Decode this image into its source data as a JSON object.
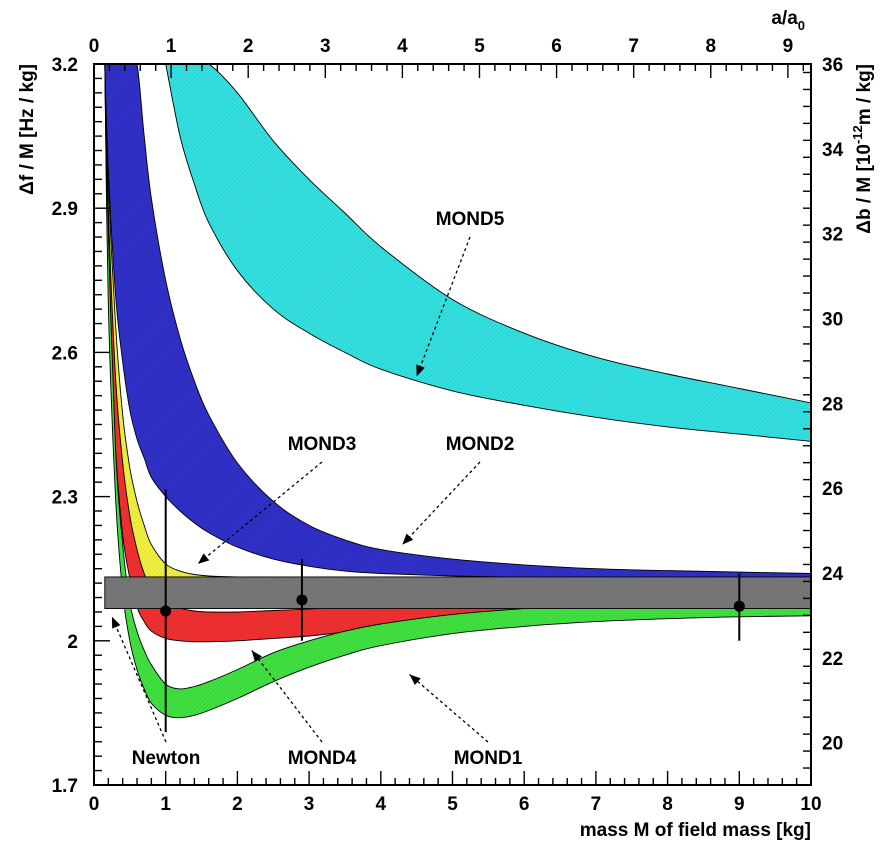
{
  "chart_data": {
    "type": "area",
    "title": "",
    "xlabel": "mass M of field mass [kg]",
    "ylabel": "Δf / M  [Hz / kg]",
    "y2label_main": "Δb / M  [10",
    "y2label_exp": "-12",
    "y2label_tail": "m / kg]",
    "top_axis_label": "a/a",
    "top_axis_label_sub": "0",
    "xlim": [
      0,
      10
    ],
    "ylim": [
      1.7,
      3.2
    ],
    "y2lim": [
      19.0,
      36.0
    ],
    "top_xlim": [
      0,
      9.3
    ],
    "x_ticks": [
      "0",
      "1",
      "2",
      "3",
      "4",
      "5",
      "6",
      "7",
      "8",
      "9",
      "10"
    ],
    "y_ticks": [
      "1.7",
      "2",
      "2.3",
      "2.6",
      "2.9",
      "3.2"
    ],
    "y2_ticks": [
      "20",
      "22",
      "24",
      "26",
      "28",
      "30",
      "32",
      "34",
      "36"
    ],
    "top_ticks": [
      "0",
      "1",
      "2",
      "3",
      "4",
      "5",
      "6",
      "7",
      "8",
      "9"
    ],
    "grid": false,
    "legend": "none",
    "x": [
      0.15,
      0.2,
      0.3,
      0.4,
      0.5,
      0.6,
      0.7,
      0.8,
      1.0,
      1.2,
      1.4,
      1.6,
      2.0,
      2.5,
      3.0,
      3.5,
      4.0,
      5.0,
      6.0,
      7.0,
      8.0,
      9.0,
      10.0
    ],
    "series": [
      {
        "label": "MOND5",
        "color": "#33e0e0",
        "lower": [
          null,
          null,
          null,
          null,
          null,
          null,
          null,
          null,
          3.2,
          3.05,
          2.95,
          2.87,
          2.77,
          2.69,
          2.64,
          2.6,
          2.565,
          2.52,
          2.49,
          2.465,
          2.445,
          2.43,
          2.415
        ],
        "upper": [
          null,
          null,
          null,
          null,
          null,
          null,
          null,
          null,
          3.2,
          3.2,
          3.2,
          3.2,
          3.14,
          3.04,
          2.96,
          2.89,
          2.82,
          2.71,
          2.64,
          2.59,
          2.555,
          2.525,
          2.495
        ]
      },
      {
        "label": "MOND2",
        "color": "#3030c8",
        "lower": [
          3.2,
          2.98,
          2.72,
          2.58,
          2.48,
          2.42,
          2.38,
          2.34,
          2.3,
          2.27,
          2.245,
          2.225,
          2.195,
          2.17,
          2.155,
          2.145,
          2.14,
          2.135,
          2.132,
          2.13,
          2.128,
          2.127,
          2.126
        ],
        "upper": [
          3.2,
          3.2,
          3.2,
          3.2,
          3.2,
          3.2,
          3.05,
          2.92,
          2.75,
          2.63,
          2.54,
          2.47,
          2.37,
          2.29,
          2.24,
          2.21,
          2.19,
          2.17,
          2.158,
          2.15,
          2.146,
          2.143,
          2.14
        ]
      },
      {
        "label": "MOND3",
        "color": "#f0f040",
        "lower": [
          3.2,
          2.8,
          2.5,
          2.33,
          2.22,
          2.16,
          2.12,
          2.1,
          2.085,
          2.078,
          2.075,
          2.073,
          2.072,
          2.072,
          2.072,
          2.073,
          2.074,
          2.08,
          2.085,
          2.09,
          2.095,
          2.1,
          2.105
        ],
        "upper": [
          3.2,
          2.95,
          2.66,
          2.47,
          2.36,
          2.29,
          2.24,
          2.2,
          2.16,
          2.145,
          2.138,
          2.135,
          2.133,
          2.132,
          2.132,
          2.131,
          2.13,
          2.128,
          2.126,
          2.124,
          2.122,
          2.12,
          2.118
        ]
      },
      {
        "label": "MOND4",
        "color": "#f03030",
        "lower": [
          3.2,
          2.75,
          2.4,
          2.22,
          2.13,
          2.07,
          2.04,
          2.02,
          2.005,
          2.0,
          1.998,
          1.998,
          2.0,
          2.005,
          2.01,
          2.018,
          2.025,
          2.038,
          2.045,
          2.05,
          2.052,
          2.053,
          2.053
        ],
        "upper": [
          3.2,
          2.9,
          2.55,
          2.37,
          2.26,
          2.19,
          2.14,
          2.11,
          2.08,
          2.068,
          2.062,
          2.06,
          2.06,
          2.063,
          2.066,
          2.07,
          2.075,
          2.082,
          2.088,
          2.092,
          2.094,
          2.095,
          2.095
        ]
      },
      {
        "label": "MOND1",
        "color": "#40e040",
        "lower": [
          3.2,
          2.7,
          2.3,
          2.1,
          2.0,
          1.94,
          1.9,
          1.87,
          1.845,
          1.84,
          1.845,
          1.855,
          1.88,
          1.915,
          1.945,
          1.97,
          1.99,
          2.015,
          2.03,
          2.04,
          2.046,
          2.05,
          2.052
        ],
        "upper": [
          3.2,
          2.85,
          2.4,
          2.2,
          2.08,
          2.02,
          1.98,
          1.95,
          1.91,
          1.9,
          1.905,
          1.915,
          1.94,
          1.975,
          2.0,
          2.02,
          2.035,
          2.055,
          2.067,
          2.075,
          2.08,
          2.085,
          2.088
        ]
      },
      {
        "label": "Newton",
        "color": "#777777",
        "lower": [
          2.067,
          2.067,
          2.067,
          2.067,
          2.067,
          2.067,
          2.067,
          2.067,
          2.067,
          2.067,
          2.067,
          2.067,
          2.067,
          2.067,
          2.067,
          2.067,
          2.067,
          2.067,
          2.067,
          2.067,
          2.067,
          2.067,
          2.067
        ],
        "upper": [
          2.133,
          2.133,
          2.133,
          2.133,
          2.133,
          2.133,
          2.133,
          2.133,
          2.133,
          2.133,
          2.133,
          2.133,
          2.133,
          2.133,
          2.133,
          2.133,
          2.133,
          2.133,
          2.133,
          2.133,
          2.133,
          2.133,
          2.133
        ]
      }
    ],
    "data_points": [
      {
        "x": 1.0,
        "y": 2.062,
        "yerr_low": 1.81,
        "yerr_high": 2.315
      },
      {
        "x": 2.9,
        "y": 2.085,
        "yerr_low": 2.0,
        "yerr_high": 2.17
      },
      {
        "x": 9.0,
        "y": 2.072,
        "yerr_low": 2.0,
        "yerr_high": 2.14
      }
    ],
    "annotations": [
      {
        "text": "MOND5",
        "tip_x": 4.5,
        "tip_y": 2.55
      },
      {
        "text": "MOND2",
        "tip_x": 4.3,
        "tip_y": 2.2
      },
      {
        "text": "MOND3",
        "tip_x": 1.45,
        "tip_y": 2.16
      },
      {
        "text": "Newton",
        "tip_x": 0.25,
        "tip_y": 2.05
      },
      {
        "text": "MOND4",
        "tip_x": 2.2,
        "tip_y": 1.98
      },
      {
        "text": "MOND1",
        "tip_x": 4.4,
        "tip_y": 1.93
      }
    ]
  }
}
